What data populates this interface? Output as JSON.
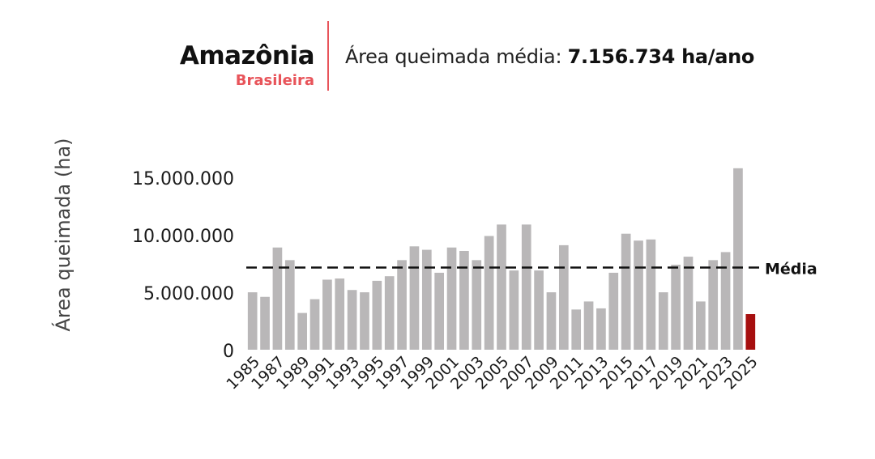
{
  "header": {
    "title": "Amazônia",
    "subtitle": "Brasileira",
    "average_label": "Área queimada média:",
    "average_value": "7.156.734 ha/ano"
  },
  "colors": {
    "accent": "#e8545a",
    "bar": "#b9b7b8",
    "highlight_bar": "#a60f0f",
    "average_line": "#111111"
  },
  "chart_data": {
    "type": "bar",
    "ylabel": "Área queimada (ha)",
    "ylim": [
      0,
      16000000
    ],
    "yticks": [
      {
        "value": 0,
        "label": "0"
      },
      {
        "value": 5000000,
        "label": "5.000.000"
      },
      {
        "value": 10000000,
        "label": "10.000.000"
      },
      {
        "value": 15000000,
        "label": "15.000.000"
      }
    ],
    "xtick_labels": [
      "1985",
      "1987",
      "1989",
      "1991",
      "1993",
      "1995",
      "1997",
      "1999",
      "2001",
      "2003",
      "2005",
      "2007",
      "2009",
      "2011",
      "2013",
      "2015",
      "2017",
      "2019",
      "2021",
      "2023",
      "2025"
    ],
    "categories": [
      "1985",
      "1986",
      "1987",
      "1988",
      "1989",
      "1990",
      "1991",
      "1992",
      "1993",
      "1994",
      "1995",
      "1996",
      "1997",
      "1998",
      "1999",
      "2000",
      "2001",
      "2002",
      "2003",
      "2004",
      "2005",
      "2006",
      "2007",
      "2008",
      "2009",
      "2010",
      "2011",
      "2012",
      "2013",
      "2014",
      "2015",
      "2016",
      "2017",
      "2018",
      "2019",
      "2020",
      "2021",
      "2022",
      "2023",
      "2024",
      "2025"
    ],
    "values": [
      5000000,
      4600000,
      8900000,
      7800000,
      3200000,
      4400000,
      6100000,
      6200000,
      5200000,
      5000000,
      6000000,
      6400000,
      7800000,
      9000000,
      8700000,
      6700000,
      8900000,
      8600000,
      7800000,
      9900000,
      10900000,
      6900000,
      10900000,
      6900000,
      5000000,
      9100000,
      3500000,
      4200000,
      3600000,
      6700000,
      10100000,
      9500000,
      9600000,
      5000000,
      7400000,
      8100000,
      4200000,
      7800000,
      8500000,
      15800000,
      3100000
    ],
    "highlight_category": "2025",
    "average": 7156734,
    "average_label": "Média"
  }
}
